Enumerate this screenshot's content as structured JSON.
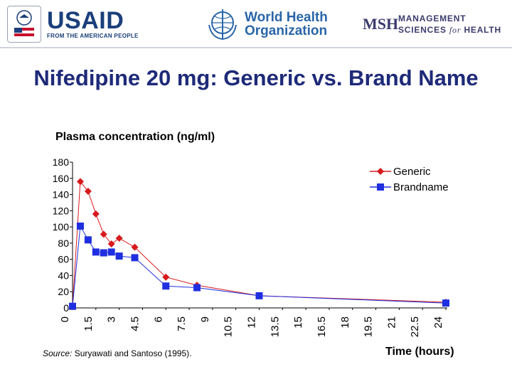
{
  "header": {
    "usaid": {
      "name": "USAID",
      "tagline": "FROM THE AMERICAN PEOPLE"
    },
    "who": {
      "line1": "World Health",
      "line2": "Organization"
    },
    "msh": {
      "mark": "MSH",
      "line1": "MANAGEMENT",
      "line2a": "SCIENCES",
      "line2b": "for",
      "line2c": "HEALTH"
    }
  },
  "title": "Nifedipine 20 mg: Generic vs. Brand Name",
  "source": {
    "prefix": "Source:",
    "text": "Suryawati and Santoso (1995)."
  },
  "chart_data": {
    "type": "line",
    "title": "Plasma  concentration (ng/ml)",
    "xlabel": "Time (hours)",
    "ylabel": "",
    "ylim": [
      0,
      180
    ],
    "yticks": [
      0,
      20,
      40,
      60,
      80,
      100,
      120,
      140,
      160,
      180
    ],
    "categories": [
      "0",
      "1.5",
      "3",
      "4.5",
      "6",
      "7.5",
      "9",
      "10.5",
      "12",
      "13.5",
      "15",
      "16.5",
      "18",
      "19.5",
      "21",
      "22.5",
      "24"
    ],
    "legend_position": "top-right",
    "grid": false,
    "series": [
      {
        "name": "Generic",
        "color": "#d7191c",
        "marker": "diamond",
        "x": [
          0,
          0.5,
          1,
          1.5,
          2,
          2.5,
          3,
          4,
          6,
          8,
          12,
          24
        ],
        "y": [
          2,
          156,
          144,
          116,
          91,
          79,
          86,
          75,
          38,
          28,
          15,
          7
        ]
      },
      {
        "name": "Brandname",
        "color": "#1f2fe0",
        "marker": "square",
        "x": [
          0,
          0.5,
          1,
          1.5,
          2,
          2.5,
          3,
          4,
          6,
          8,
          12,
          24
        ],
        "y": [
          2,
          101,
          84,
          69,
          68,
          69,
          64,
          62,
          27,
          25,
          15,
          6
        ]
      }
    ]
  }
}
